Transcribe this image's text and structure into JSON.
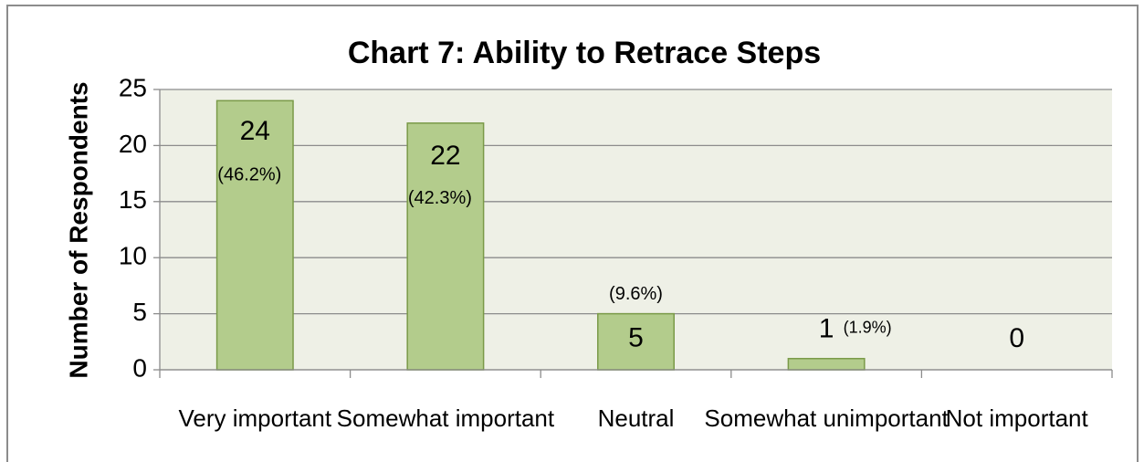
{
  "chart_data": {
    "type": "bar",
    "title": "Chart 7: Ability to Retrace Steps",
    "y_axis_label": "Number of Respondents",
    "categories": [
      "Very important",
      "Somewhat important",
      "Neutral",
      "Somewhat unimportant",
      "Not important"
    ],
    "values": [
      24,
      22,
      5,
      1,
      0
    ],
    "percent_labels": [
      "(46.2%)",
      "(42.3%)",
      "(9.6%)",
      "(1.9%)",
      null
    ],
    "color": "#b3cc8c",
    "ylim": [
      0,
      25
    ],
    "yticks": [
      0,
      5,
      10,
      15,
      20,
      25
    ],
    "grid": true
  }
}
